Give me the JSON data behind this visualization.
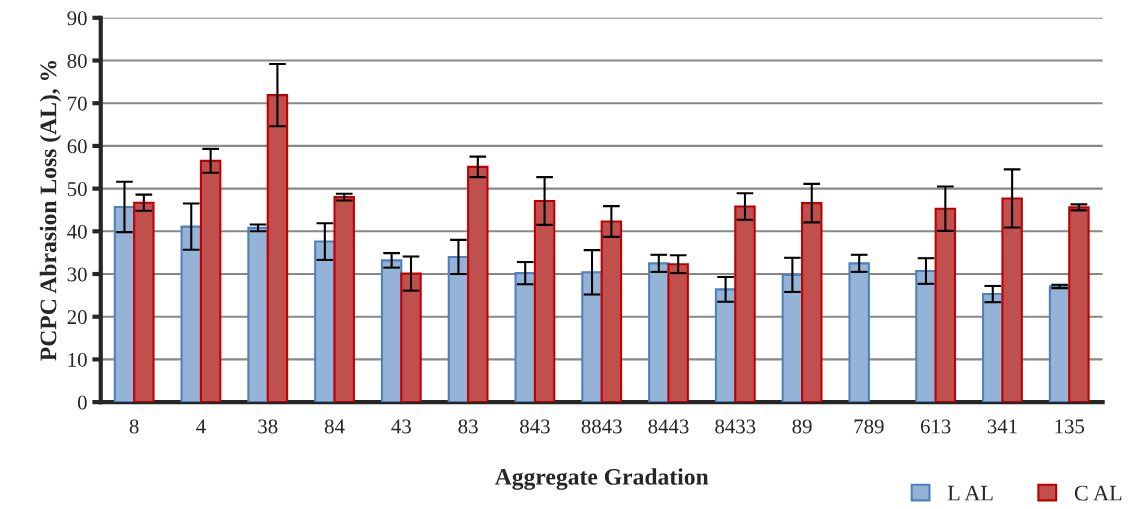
{
  "chart_data": {
    "type": "bar",
    "xlabel": "Aggregate Gradation",
    "ylabel": "PCPC Abrasion Loss (AL), %",
    "categories": [
      "8",
      "4",
      "38",
      "84",
      "43",
      "83",
      "843",
      "8843",
      "8443",
      "8433",
      "89",
      "789",
      "613",
      "341",
      "135"
    ],
    "series": [
      {
        "name": "L AL",
        "color": "#95b3d7",
        "values": [
          45.7,
          41.1,
          40.8,
          37.6,
          33.2,
          34.0,
          30.2,
          30.4,
          32.5,
          26.4,
          29.8,
          32.5,
          30.7,
          25.3,
          27.1
        ],
        "errors": [
          5.9,
          5.4,
          0.8,
          4.3,
          1.7,
          4.0,
          2.6,
          5.2,
          2.0,
          2.9,
          4.0,
          2.0,
          3.0,
          1.9,
          0.4
        ]
      },
      {
        "name": "C AL",
        "color": "#c0504d",
        "values": [
          46.7,
          56.5,
          71.9,
          48.0,
          30.1,
          55.1,
          47.1,
          42.3,
          32.3,
          45.8,
          46.6,
          null,
          45.3,
          47.7,
          45.6
        ],
        "errors": [
          1.9,
          2.8,
          7.3,
          0.8,
          4.0,
          2.4,
          5.6,
          3.6,
          2.1,
          3.1,
          4.5,
          null,
          5.2,
          6.8,
          0.7
        ]
      }
    ],
    "ylim": [
      0,
      90
    ],
    "yticks": [
      0,
      10,
      20,
      30,
      40,
      50,
      60,
      70,
      80,
      90
    ],
    "grid": "y",
    "legend": "bottom right"
  }
}
